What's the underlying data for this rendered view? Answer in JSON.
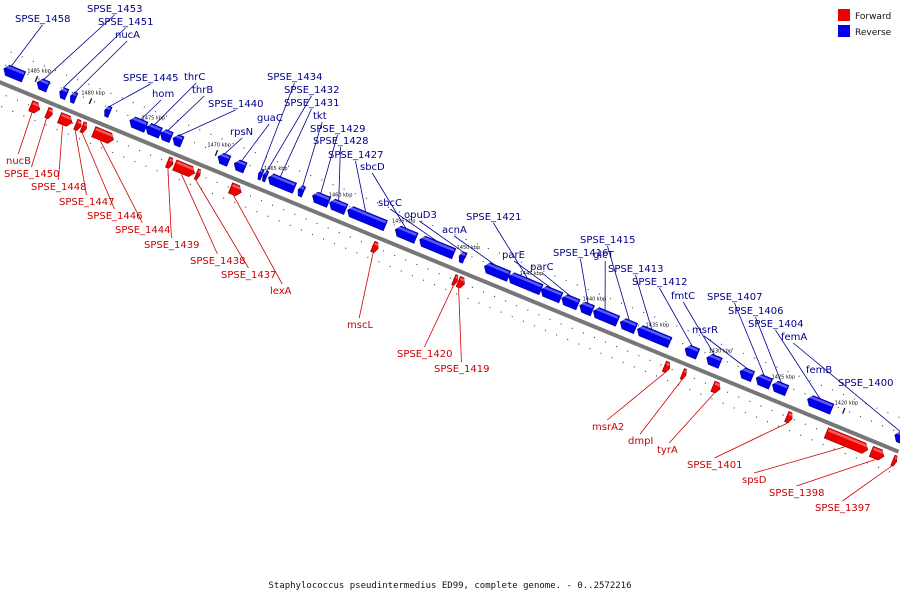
{
  "caption": "Staphylococcus pseudintermedius ED99, complete genome. - 0..2572216",
  "legend": {
    "forward_label": "Forward",
    "reverse_label": "Reverse",
    "forward_color": "#ee0000",
    "reverse_color": "#0000ee"
  },
  "colors": {
    "backbone": "#777777",
    "tick": "#111111"
  },
  "ticks": [
    {
      "label": "1485 kbp",
      "pos": 0.035
    },
    {
      "label": "1480 kbp",
      "pos": 0.095
    },
    {
      "label": "1475 kbp",
      "pos": 0.162
    },
    {
      "label": "1470 kbp",
      "pos": 0.235
    },
    {
      "label": "1465 kbp",
      "pos": 0.298
    },
    {
      "label": "1460 kbp",
      "pos": 0.37
    },
    {
      "label": "1455 kbp",
      "pos": 0.44
    },
    {
      "label": "1450 kbp",
      "pos": 0.512
    },
    {
      "label": "1445 kbp",
      "pos": 0.582
    },
    {
      "label": "1440 kbp",
      "pos": 0.652
    },
    {
      "label": "1435 kbp",
      "pos": 0.722
    },
    {
      "label": "1430 kbp",
      "pos": 0.792
    },
    {
      "label": "1425 kbp",
      "pos": 0.862
    },
    {
      "label": "1420 kbp",
      "pos": 0.932
    }
  ],
  "reverse_genes": [
    {
      "name": "SPSE_1458",
      "s": 0.0,
      "e": 0.022
    },
    {
      "name": "SPSE_1453",
      "s": 0.037,
      "e": 0.049
    },
    {
      "name": "SPSE_1451",
      "s": 0.062,
      "e": 0.07
    },
    {
      "name": "nucA",
      "s": 0.074,
      "e": 0.08
    },
    {
      "name": "SPSE_1445",
      "s": 0.112,
      "e": 0.118
    },
    {
      "name": "hom",
      "s": 0.14,
      "e": 0.158
    },
    {
      "name": "thrC",
      "s": 0.158,
      "e": 0.174
    },
    {
      "name": "thrB",
      "s": 0.174,
      "e": 0.186
    },
    {
      "name": "SPSE_1440",
      "s": 0.188,
      "e": 0.198
    },
    {
      "name": "rpsN",
      "s": 0.238,
      "e": 0.25
    },
    {
      "name": "guaC",
      "s": 0.256,
      "e": 0.268
    },
    {
      "name": "SPSE_1434",
      "s": 0.283,
      "e": 0.286
    },
    {
      "name": "SPSE_1432",
      "s": 0.288,
      "e": 0.292
    },
    {
      "name": "SPSE_1431",
      "s": 0.294,
      "e": 0.323
    },
    {
      "name": "tkt",
      "s": 0.327,
      "e": 0.333
    },
    {
      "name": "SPSE_1429",
      "s": 0.343,
      "e": 0.361
    },
    {
      "name": "SPSE_1428",
      "s": 0.362,
      "e": 0.38
    },
    {
      "name": "SPSE_1427",
      "s": 0.382,
      "e": 0.424
    },
    {
      "name": "sbcD",
      "s": 0.435,
      "e": 0.458
    },
    {
      "name": "sbcC",
      "s": 0.462,
      "e": 0.5
    },
    {
      "name": "opuD3",
      "s": 0.506,
      "e": 0.512
    },
    {
      "name": "acnA",
      "s": 0.534,
      "e": 0.561
    },
    {
      "name": "SPSE_1421",
      "s": 0.561,
      "e": 0.597
    },
    {
      "name": "parE",
      "s": 0.597,
      "e": 0.619
    },
    {
      "name": "parC",
      "s": 0.62,
      "e": 0.638
    },
    {
      "name": "SPSE_1416",
      "s": 0.64,
      "e": 0.654
    },
    {
      "name": "glcT",
      "s": 0.655,
      "e": 0.682
    },
    {
      "name": "SPSE_1415",
      "s": 0.685,
      "e": 0.702
    },
    {
      "name": "SPSE_1413",
      "s": 0.704,
      "e": 0.74
    },
    {
      "name": "SPSE_1412",
      "s": 0.757,
      "e": 0.771
    },
    {
      "name": "fmtC",
      "s": 0.781,
      "e": 0.796
    },
    {
      "name": "msrR",
      "s": 0.818,
      "e": 0.832
    },
    {
      "name": "SPSE_1407",
      "s": 0.836,
      "e": 0.852
    },
    {
      "name": "SPSE_1406",
      "s": 0.854,
      "e": 0.87
    },
    {
      "name": "SPSE_1404",
      "s": 0.893,
      "e": 0.92
    },
    {
      "name": "femA",
      "s": 0.99,
      "e": 1.0
    },
    {
      "name": "femB",
      "s": 1.0,
      "e": 1.0
    },
    {
      "name": "SPSE_1400",
      "s": 1.0,
      "e": 1.0
    }
  ],
  "forward_genes": [
    {
      "name": "nucB",
      "s": 0.04,
      "e": 0.05
    },
    {
      "name": "SPSE_1450",
      "s": 0.058,
      "e": 0.064
    },
    {
      "name": "SPSE_1448",
      "s": 0.072,
      "e": 0.086
    },
    {
      "name": "SPSE_1447",
      "s": 0.09,
      "e": 0.096
    },
    {
      "name": "SPSE_1446",
      "s": 0.097,
      "e": 0.102
    },
    {
      "name": "SPSE_1444",
      "s": 0.11,
      "e": 0.132
    },
    {
      "name": "SPSE_1439",
      "s": 0.192,
      "e": 0.198
    },
    {
      "name": "SPSE_1438",
      "s": 0.2,
      "e": 0.222
    },
    {
      "name": "SPSE_1437",
      "s": 0.224,
      "e": 0.228
    },
    {
      "name": "lexA",
      "s": 0.262,
      "e": 0.274
    },
    {
      "name": "mscL",
      "s": 0.42,
      "e": 0.426
    },
    {
      "name": "SPSE_1420",
      "s": 0.51,
      "e": 0.514
    },
    {
      "name": "SPSE_1419",
      "s": 0.515,
      "e": 0.522
    },
    {
      "name": "msrA2",
      "s": 0.744,
      "e": 0.75
    },
    {
      "name": "dmpI",
      "s": 0.764,
      "e": 0.768
    },
    {
      "name": "tyrA",
      "s": 0.798,
      "e": 0.806
    },
    {
      "name": "SPSE_1401",
      "s": 0.88,
      "e": 0.886
    },
    {
      "name": "spsD",
      "s": 0.924,
      "e": 0.97
    },
    {
      "name": "SPSE_1398",
      "s": 0.974,
      "e": 0.988
    },
    {
      "name": "SPSE_1397",
      "s": 0.998,
      "e": 1.0
    }
  ],
  "reverse_labels": [
    {
      "name": "SPSE_1458",
      "anchor": 0.006
    },
    {
      "name": "SPSE_1453",
      "anchor": 0.042
    },
    {
      "name": "SPSE_1451",
      "anchor": 0.064
    },
    {
      "name": "nucA",
      "anchor": 0.077
    },
    {
      "name": "SPSE_1445",
      "anchor": 0.115
    },
    {
      "name": "hom",
      "anchor": 0.15
    },
    {
      "name": "thrC",
      "anchor": 0.165
    },
    {
      "name": "thrB",
      "anchor": 0.18
    },
    {
      "name": "SPSE_1440",
      "anchor": 0.193
    },
    {
      "name": "rpsN",
      "anchor": 0.243
    },
    {
      "name": "guaC",
      "anchor": 0.262
    },
    {
      "name": "SPSE_1434",
      "anchor": 0.284
    },
    {
      "name": "SPSE_1432",
      "anchor": 0.29
    },
    {
      "name": "SPSE_1431",
      "anchor": 0.305
    },
    {
      "name": "tkt",
      "anchor": 0.33
    },
    {
      "name": "SPSE_1429",
      "anchor": 0.35
    },
    {
      "name": "SPSE_1428",
      "anchor": 0.37
    },
    {
      "name": "SPSE_1427",
      "anchor": 0.4
    },
    {
      "name": "sbcD",
      "anchor": 0.445
    },
    {
      "name": "sbcC",
      "anchor": 0.48
    },
    {
      "name": "opuD3",
      "anchor": 0.509
    },
    {
      "name": "acnA",
      "anchor": 0.545
    },
    {
      "name": "SPSE_1421",
      "anchor": 0.58
    },
    {
      "name": "parE",
      "anchor": 0.607
    },
    {
      "name": "parC",
      "anchor": 0.628
    },
    {
      "name": "SPSE_1416",
      "anchor": 0.647
    },
    {
      "name": "glcT",
      "anchor": 0.666
    },
    {
      "name": "SPSE_1415",
      "anchor": 0.693
    },
    {
      "name": "SPSE_1413",
      "anchor": 0.718
    },
    {
      "name": "SPSE_1412",
      "anchor": 0.763
    },
    {
      "name": "fmtC",
      "anchor": 0.788
    },
    {
      "name": "msrR",
      "anchor": 0.825
    },
    {
      "name": "SPSE_1407",
      "anchor": 0.843
    },
    {
      "name": "SPSE_1406",
      "anchor": 0.862
    },
    {
      "name": "SPSE_1404",
      "anchor": 0.905
    },
    {
      "name": "femA",
      "anchor": 0.995
    },
    {
      "name": "femB",
      "anchor": 1.0
    },
    {
      "name": "SPSE_1400",
      "anchor": 1.0
    }
  ],
  "forward_labels": [
    {
      "name": "nucB",
      "anchor": 0.044
    },
    {
      "name": "SPSE_1450",
      "anchor": 0.06
    },
    {
      "name": "SPSE_1448",
      "anchor": 0.078
    },
    {
      "name": "SPSE_1447",
      "anchor": 0.092
    },
    {
      "name": "SPSE_1446",
      "anchor": 0.1
    },
    {
      "name": "SPSE_1444",
      "anchor": 0.12
    },
    {
      "name": "SPSE_1439",
      "anchor": 0.195
    },
    {
      "name": "SPSE_1438",
      "anchor": 0.21
    },
    {
      "name": "SPSE_1437",
      "anchor": 0.226
    },
    {
      "name": "lexA",
      "anchor": 0.268
    },
    {
      "name": "mscL",
      "anchor": 0.423
    },
    {
      "name": "SPSE_1420",
      "anchor": 0.512
    },
    {
      "name": "SPSE_1419",
      "anchor": 0.518
    },
    {
      "name": "msrA2",
      "anchor": 0.747
    },
    {
      "name": "dmpI",
      "anchor": 0.766
    },
    {
      "name": "tyrA",
      "anchor": 0.802
    },
    {
      "name": "SPSE_1401",
      "anchor": 0.883
    },
    {
      "name": "spsD",
      "anchor": 0.947
    },
    {
      "name": "SPSE_1398",
      "anchor": 0.981
    },
    {
      "name": "SPSE_1397",
      "anchor": 0.999
    }
  ]
}
